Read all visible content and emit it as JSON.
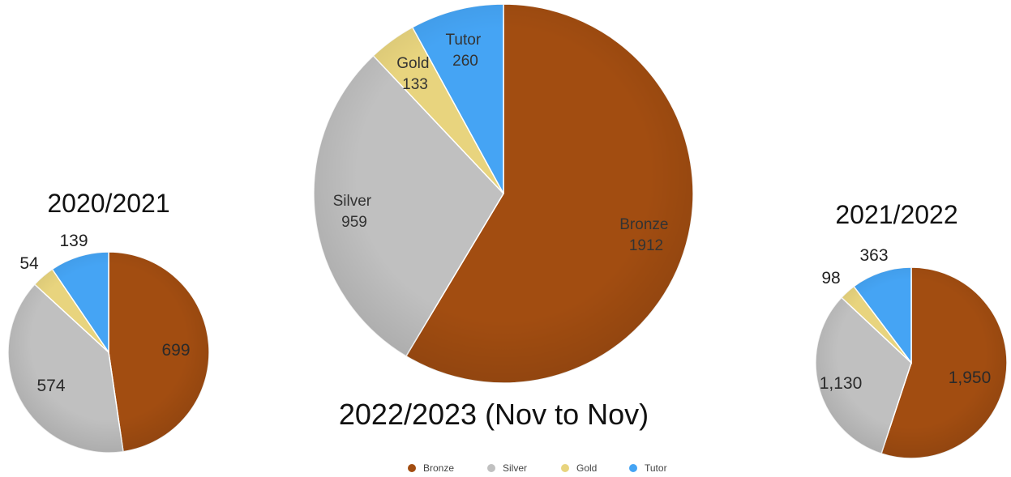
{
  "chart_data": [
    {
      "type": "pie",
      "title": "2020/2021",
      "categories": [
        "Bronze",
        "Silver",
        "Gold",
        "Tutor"
      ],
      "values": [
        699,
        574,
        54,
        139
      ],
      "labels": [
        "699",
        "574",
        "54",
        "139"
      ]
    },
    {
      "type": "pie",
      "title": "2022/2023 (Nov to Nov)",
      "categories": [
        "Bronze",
        "Silver",
        "Gold",
        "Tutor"
      ],
      "values": [
        1912,
        959,
        133,
        260
      ],
      "labels": [
        "Bronze\n1912",
        "Silver\n959",
        "Gold\n133",
        "Tutor\n260"
      ]
    },
    {
      "type": "pie",
      "title": "2021/2022",
      "categories": [
        "Bronze",
        "Silver",
        "Gold",
        "Tutor"
      ],
      "values": [
        1950,
        1130,
        98,
        363
      ],
      "labels": [
        "1,950",
        "1,130",
        "98",
        "363"
      ]
    }
  ],
  "legend": {
    "placement": "bottom-center",
    "items": [
      {
        "label": "Bronze",
        "color": "#A24D11"
      },
      {
        "label": "Silver",
        "color": "#C0C0C0"
      },
      {
        "label": "Gold",
        "color": "#E8D47E"
      },
      {
        "label": "Tutor",
        "color": "#45A4F4"
      }
    ]
  },
  "colors": {
    "Bronze": "#A24D11",
    "Silver": "#C0C0C0",
    "Gold": "#E8D47E",
    "Tutor": "#45A4F4"
  }
}
